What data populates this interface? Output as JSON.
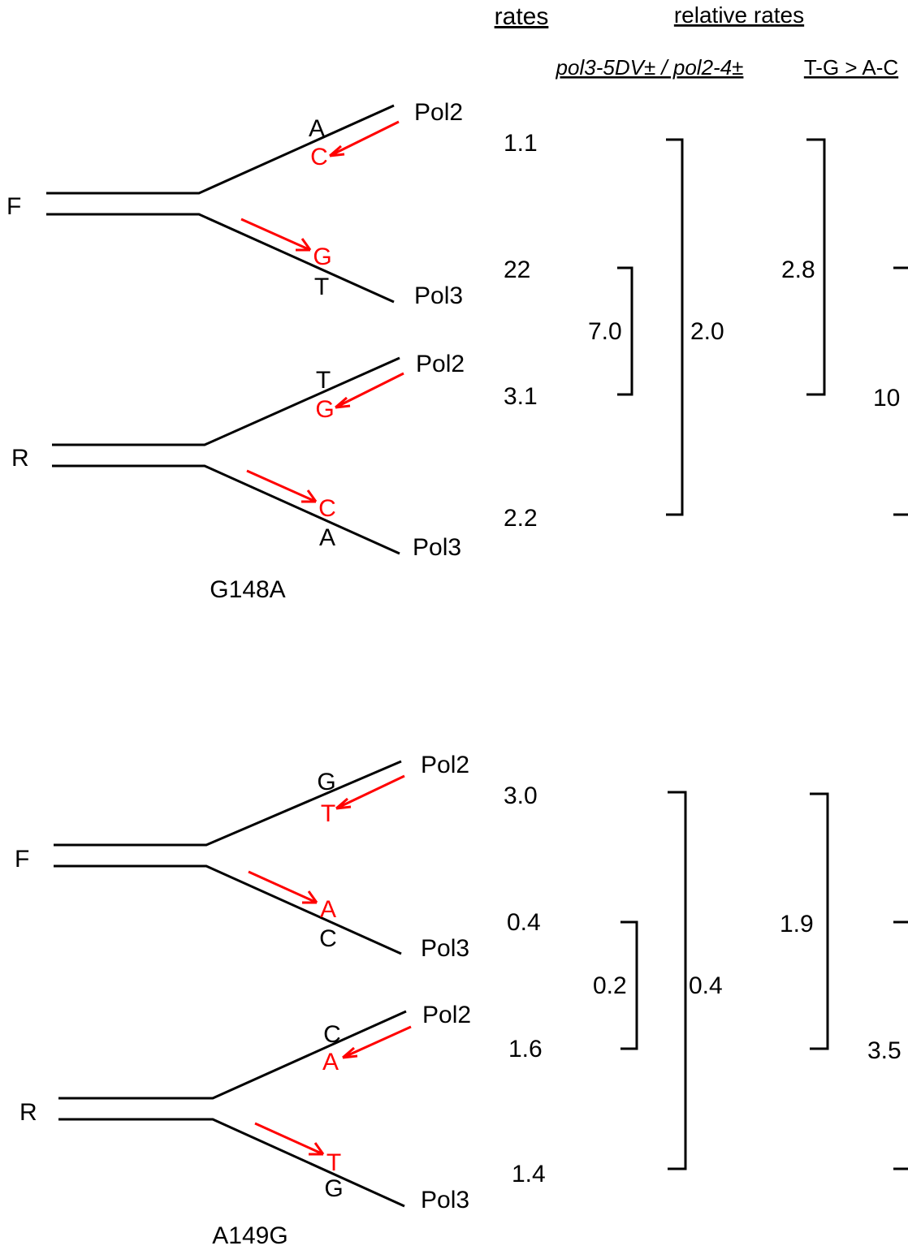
{
  "headers": {
    "rates": "rates",
    "relative_rates": "relative rates",
    "ratio_col": "pol3-5DV± / pol2-4±",
    "tg_col": "T-G > A-C"
  },
  "panels": [
    {
      "name": "G148A",
      "forks": [
        {
          "strand": "F",
          "top": {
            "template_base": "A",
            "inserted_base": "C",
            "polymerase": "Pol2",
            "rate": "1.1"
          },
          "bottom": {
            "template_base": "T",
            "inserted_base": "G",
            "polymerase": "Pol3",
            "rate": "22"
          }
        },
        {
          "strand": "R",
          "top": {
            "template_base": "T",
            "inserted_base": "G",
            "polymerase": "Pol2",
            "rate": "3.1"
          },
          "bottom": {
            "template_base": "A",
            "inserted_base": "C",
            "polymerase": "Pol3",
            "rate": "2.2"
          }
        }
      ],
      "relative": {
        "ratio_inner": "7.0",
        "ratio_outer": "2.0",
        "tg_inner": "2.8",
        "tg_outer": "10"
      }
    },
    {
      "name": "A149G",
      "forks": [
        {
          "strand": "F",
          "top": {
            "template_base": "G",
            "inserted_base": "T",
            "polymerase": "Pol2",
            "rate": "3.0"
          },
          "bottom": {
            "template_base": "C",
            "inserted_base": "A",
            "polymerase": "Pol3",
            "rate": "0.4"
          }
        },
        {
          "strand": "R",
          "top": {
            "template_base": "C",
            "inserted_base": "A",
            "polymerase": "Pol2",
            "rate": "1.6"
          },
          "bottom": {
            "template_base": "G",
            "inserted_base": "T",
            "polymerase": "Pol3",
            "rate": "1.4"
          }
        }
      ],
      "relative": {
        "ratio_inner": "0.2",
        "ratio_outer": "0.4",
        "tg_inner": "1.9",
        "tg_outer": "3.5"
      }
    }
  ],
  "colors": {
    "line": "#000000",
    "mutation": "#ff0000"
  }
}
